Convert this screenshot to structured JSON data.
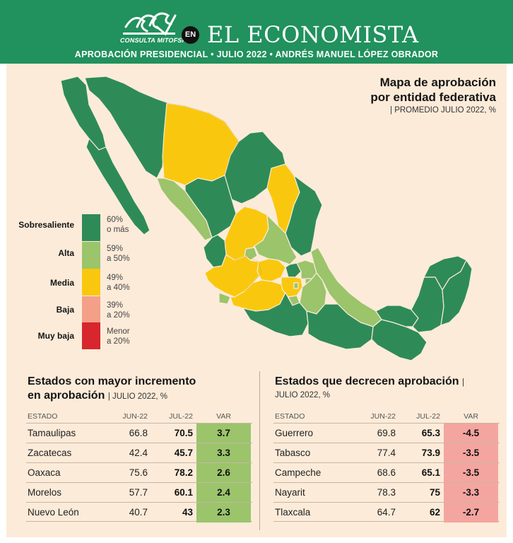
{
  "header": {
    "logo_text": "CONSULTA MITOFSKY",
    "en_badge": "EN",
    "paper_name": "EL ECONOMISTA",
    "subtitle": "APROBACIÓN PRESIDENCIAL • JULIO 2022 • ANDRÉS MANUEL LÓPEZ OBRADOR"
  },
  "map": {
    "title_line1": "Mapa de aprobación",
    "title_line2": "por entidad federativa",
    "subtitle": "| PROMEDIO JULIO 2022, %",
    "colors": {
      "sobresaliente": "#2e8b57",
      "alta": "#9bc46b",
      "media": "#f9c80e",
      "baja": "#f4a088",
      "muy_baja": "#d7262d"
    }
  },
  "legend": [
    {
      "label": "Sobresaliente",
      "range_line1": "60%",
      "range_line2": "o más",
      "color": "#2e8b57"
    },
    {
      "label": "Alta",
      "range_line1": "59%",
      "range_line2": "a 50%",
      "color": "#9bc46b"
    },
    {
      "label": "Media",
      "range_line1": "49%",
      "range_line2": "a 40%",
      "color": "#f9c80e"
    },
    {
      "label": "Baja",
      "range_line1": "39%",
      "range_line2": "a 20%",
      "color": "#f4a088"
    },
    {
      "label": "Muy baja",
      "range_line1": "Menor",
      "range_line2": "a 20%",
      "color": "#d7262d"
    }
  ],
  "chart_data": [
    {
      "type": "table",
      "title_line1": "Estados con mayor incremento",
      "title_line2": "en aprobación",
      "subtitle": "| JULIO 2022, %",
      "columns": [
        "ESTADO",
        "JUN-22",
        "JUL-22",
        "VAR"
      ],
      "var_color": "#9bc46b",
      "rows": [
        {
          "estado": "Tamaulipas",
          "jun": "66.8",
          "jul": "70.5",
          "var": "3.7"
        },
        {
          "estado": "Zacatecas",
          "jun": "42.4",
          "jul": "45.7",
          "var": "3.3"
        },
        {
          "estado": "Oaxaca",
          "jun": "75.6",
          "jul": "78.2",
          "var": "2.6"
        },
        {
          "estado": "Morelos",
          "jun": "57.7",
          "jul": "60.1",
          "var": "2.4"
        },
        {
          "estado": "Nuevo León",
          "jun": "40.7",
          "jul": "43",
          "var": "2.3"
        }
      ]
    },
    {
      "type": "table",
      "title_line1": "Estados que decrecen aprobación",
      "title_suffix": "|",
      "subtitle": "JULIO 2022, %",
      "columns": [
        "ESTADO",
        "JUN-22",
        "JUL-22",
        "VAR"
      ],
      "var_color": "#f4a5a0",
      "rows": [
        {
          "estado": "Guerrero",
          "jun": "69.8",
          "jul": "65.3",
          "var": "-4.5"
        },
        {
          "estado": "Tabasco",
          "jun": "77.4",
          "jul": "73.9",
          "var": "-3.5"
        },
        {
          "estado": "Campeche",
          "jun": "68.6",
          "jul": "65.1",
          "var": "-3.5"
        },
        {
          "estado": "Nayarit",
          "jun": "78.3",
          "jul": "75",
          "var": "-3.3"
        },
        {
          "estado": "Tlaxcala",
          "jun": "64.7",
          "jul": "62",
          "var": "-2.7"
        }
      ]
    }
  ]
}
